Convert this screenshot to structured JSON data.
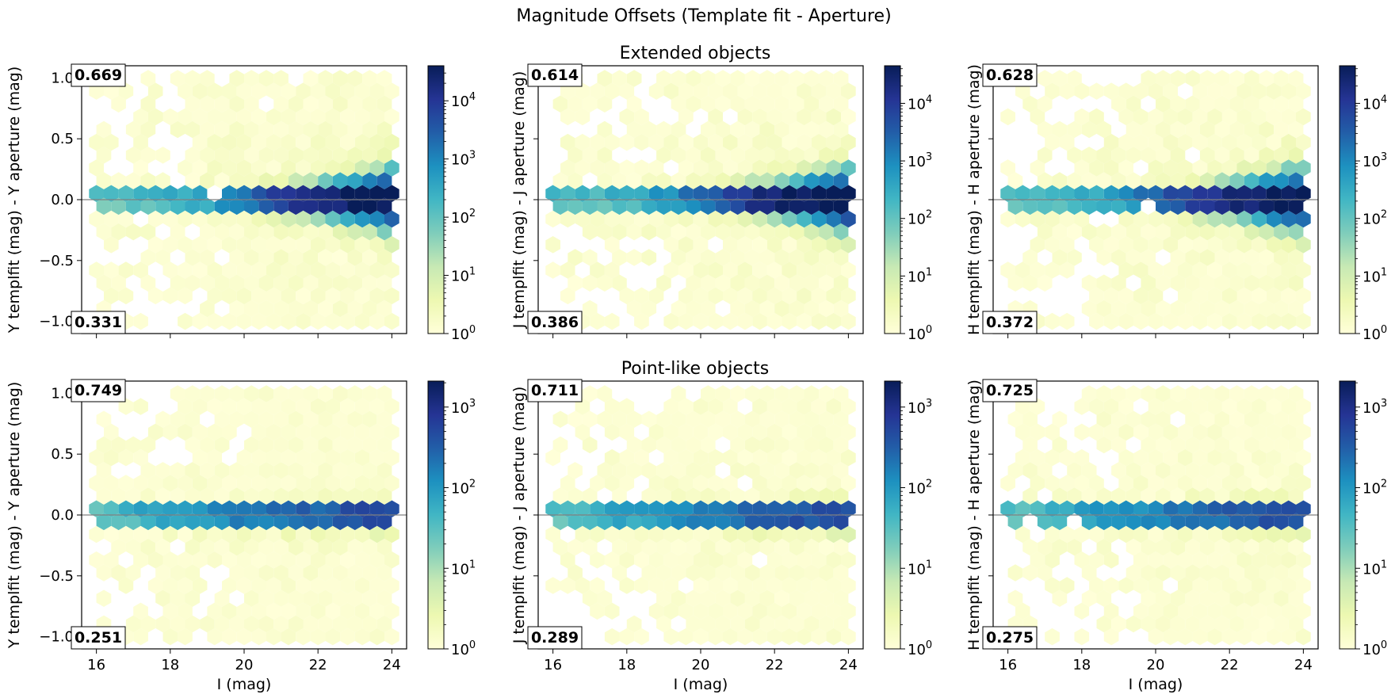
{
  "figure": {
    "title": "Magnitude Offsets (Template fit - Aperture)"
  },
  "colors": {
    "colormap": "YlGnBu",
    "stops": [
      "#ffffd9",
      "#edf8b1",
      "#c7e9b4",
      "#7fcdbb",
      "#41b6c4",
      "#1d91c0",
      "#225ea8",
      "#253494",
      "#081d58"
    ],
    "zero_line": "#808080",
    "frame": "#000000"
  },
  "chart_data": [
    {
      "type": "heatmap",
      "subtype": "hexbin",
      "row_title": "Extended objects",
      "xlabel": "",
      "ylabel": "Y templfit (mag) - Y aperture (mag)",
      "xlim": [
        15.6,
        24.4
      ],
      "ylim": [
        -1.1,
        1.1
      ],
      "xticks": [
        16,
        18,
        20,
        22,
        24
      ],
      "yticks": [
        -1.0,
        -0.5,
        0.0,
        0.5,
        1.0
      ],
      "xtick_labels": [
        "",
        "",
        "",
        "",
        ""
      ],
      "ytick_labels": [
        "−1.0",
        "−0.5",
        "0.0",
        "0.5",
        "1.0"
      ],
      "frac_above": "0.669",
      "frac_below": "0.331",
      "colorbar": {
        "scale": "log",
        "vmin": 1,
        "vmax": 40000,
        "ticks": [
          1,
          10,
          100,
          1000,
          10000
        ],
        "tick_labels": [
          "10^0",
          "10^1",
          "10^2",
          "10^3",
          "10^4"
        ]
      },
      "reference_line": {
        "y": 0.0
      }
    },
    {
      "type": "heatmap",
      "subtype": "hexbin",
      "row_title": "",
      "xlabel": "",
      "ylabel": "J templfit (mag) - J aperture (mag)",
      "xlim": [
        15.6,
        24.4
      ],
      "ylim": [
        -1.1,
        1.1
      ],
      "xticks": [
        16,
        18,
        20,
        22,
        24
      ],
      "yticks": [
        -1.0,
        -0.5,
        0.0,
        0.5,
        1.0
      ],
      "xtick_labels": [
        "",
        "",
        "",
        "",
        ""
      ],
      "ytick_labels": [
        "",
        "",
        "",
        "",
        ""
      ],
      "frac_above": "0.614",
      "frac_below": "0.386",
      "colorbar": {
        "scale": "log",
        "vmin": 1,
        "vmax": 45000,
        "ticks": [
          1,
          10,
          100,
          1000,
          10000
        ],
        "tick_labels": [
          "10^0",
          "10^1",
          "10^2",
          "10^3",
          "10^4"
        ]
      },
      "reference_line": {
        "y": 0.0
      }
    },
    {
      "type": "heatmap",
      "subtype": "hexbin",
      "row_title": "",
      "xlabel": "",
      "ylabel": "H templfit (mag) - H aperture (mag)",
      "xlim": [
        15.6,
        24.4
      ],
      "ylim": [
        -1.1,
        1.1
      ],
      "xticks": [
        16,
        18,
        20,
        22,
        24
      ],
      "yticks": [
        -1.0,
        -0.5,
        0.0,
        0.5,
        1.0
      ],
      "xtick_labels": [
        "",
        "",
        "",
        "",
        ""
      ],
      "ytick_labels": [
        "",
        "",
        "",
        "",
        ""
      ],
      "frac_above": "0.628",
      "frac_below": "0.372",
      "colorbar": {
        "scale": "log",
        "vmin": 1,
        "vmax": 45000,
        "ticks": [
          1,
          10,
          100,
          1000,
          10000
        ],
        "tick_labels": [
          "10^0",
          "10^1",
          "10^2",
          "10^3",
          "10^4"
        ]
      },
      "reference_line": {
        "y": 0.0
      }
    },
    {
      "type": "heatmap",
      "subtype": "hexbin",
      "row_title": "Point-like objects",
      "xlabel": "I (mag)",
      "ylabel": "Y templfit (mag) - Y aperture (mag)",
      "xlim": [
        15.6,
        24.4
      ],
      "ylim": [
        -1.1,
        1.1
      ],
      "xticks": [
        16,
        18,
        20,
        22,
        24
      ],
      "yticks": [
        -1.0,
        -0.5,
        0.0,
        0.5,
        1.0
      ],
      "xtick_labels": [
        "16",
        "18",
        "20",
        "22",
        "24"
      ],
      "ytick_labels": [
        "−1.0",
        "−0.5",
        "0.0",
        "0.5",
        "1.0"
      ],
      "frac_above": "0.749",
      "frac_below": "0.251",
      "colorbar": {
        "scale": "log",
        "vmin": 1,
        "vmax": 2100,
        "ticks": [
          1,
          10,
          100,
          1000
        ],
        "tick_labels": [
          "10^0",
          "10^1",
          "10^2",
          "10^3"
        ]
      },
      "reference_line": {
        "y": 0.0
      }
    },
    {
      "type": "heatmap",
      "subtype": "hexbin",
      "row_title": "",
      "xlabel": "I (mag)",
      "ylabel": "J templfit (mag) - J aperture (mag)",
      "xlim": [
        15.6,
        24.4
      ],
      "ylim": [
        -1.1,
        1.1
      ],
      "xticks": [
        16,
        18,
        20,
        22,
        24
      ],
      "yticks": [
        -1.0,
        -0.5,
        0.0,
        0.5,
        1.0
      ],
      "xtick_labels": [
        "16",
        "18",
        "20",
        "22",
        "24"
      ],
      "ytick_labels": [
        "",
        "",
        "",
        "",
        ""
      ],
      "frac_above": "0.711",
      "frac_below": "0.289",
      "colorbar": {
        "scale": "log",
        "vmin": 1,
        "vmax": 2100,
        "ticks": [
          1,
          10,
          100,
          1000
        ],
        "tick_labels": [
          "10^0",
          "10^1",
          "10^2",
          "10^3"
        ]
      },
      "reference_line": {
        "y": 0.0
      }
    },
    {
      "type": "heatmap",
      "subtype": "hexbin",
      "row_title": "",
      "xlabel": "I (mag)",
      "ylabel": "H templfit (mag) - H aperture (mag)",
      "xlim": [
        15.6,
        24.4
      ],
      "ylim": [
        -1.1,
        1.1
      ],
      "xticks": [
        16,
        18,
        20,
        22,
        24
      ],
      "yticks": [
        -1.0,
        -0.5,
        0.0,
        0.5,
        1.0
      ],
      "xtick_labels": [
        "16",
        "18",
        "20",
        "22",
        "24"
      ],
      "ytick_labels": [
        "",
        "",
        "",
        "",
        ""
      ],
      "frac_above": "0.725",
      "frac_below": "0.275",
      "colorbar": {
        "scale": "log",
        "vmin": 1,
        "vmax": 2100,
        "ticks": [
          1,
          10,
          100,
          1000
        ],
        "tick_labels": [
          "10^0",
          "10^1",
          "10^2",
          "10^3"
        ]
      },
      "reference_line": {
        "y": 0.0
      }
    }
  ]
}
